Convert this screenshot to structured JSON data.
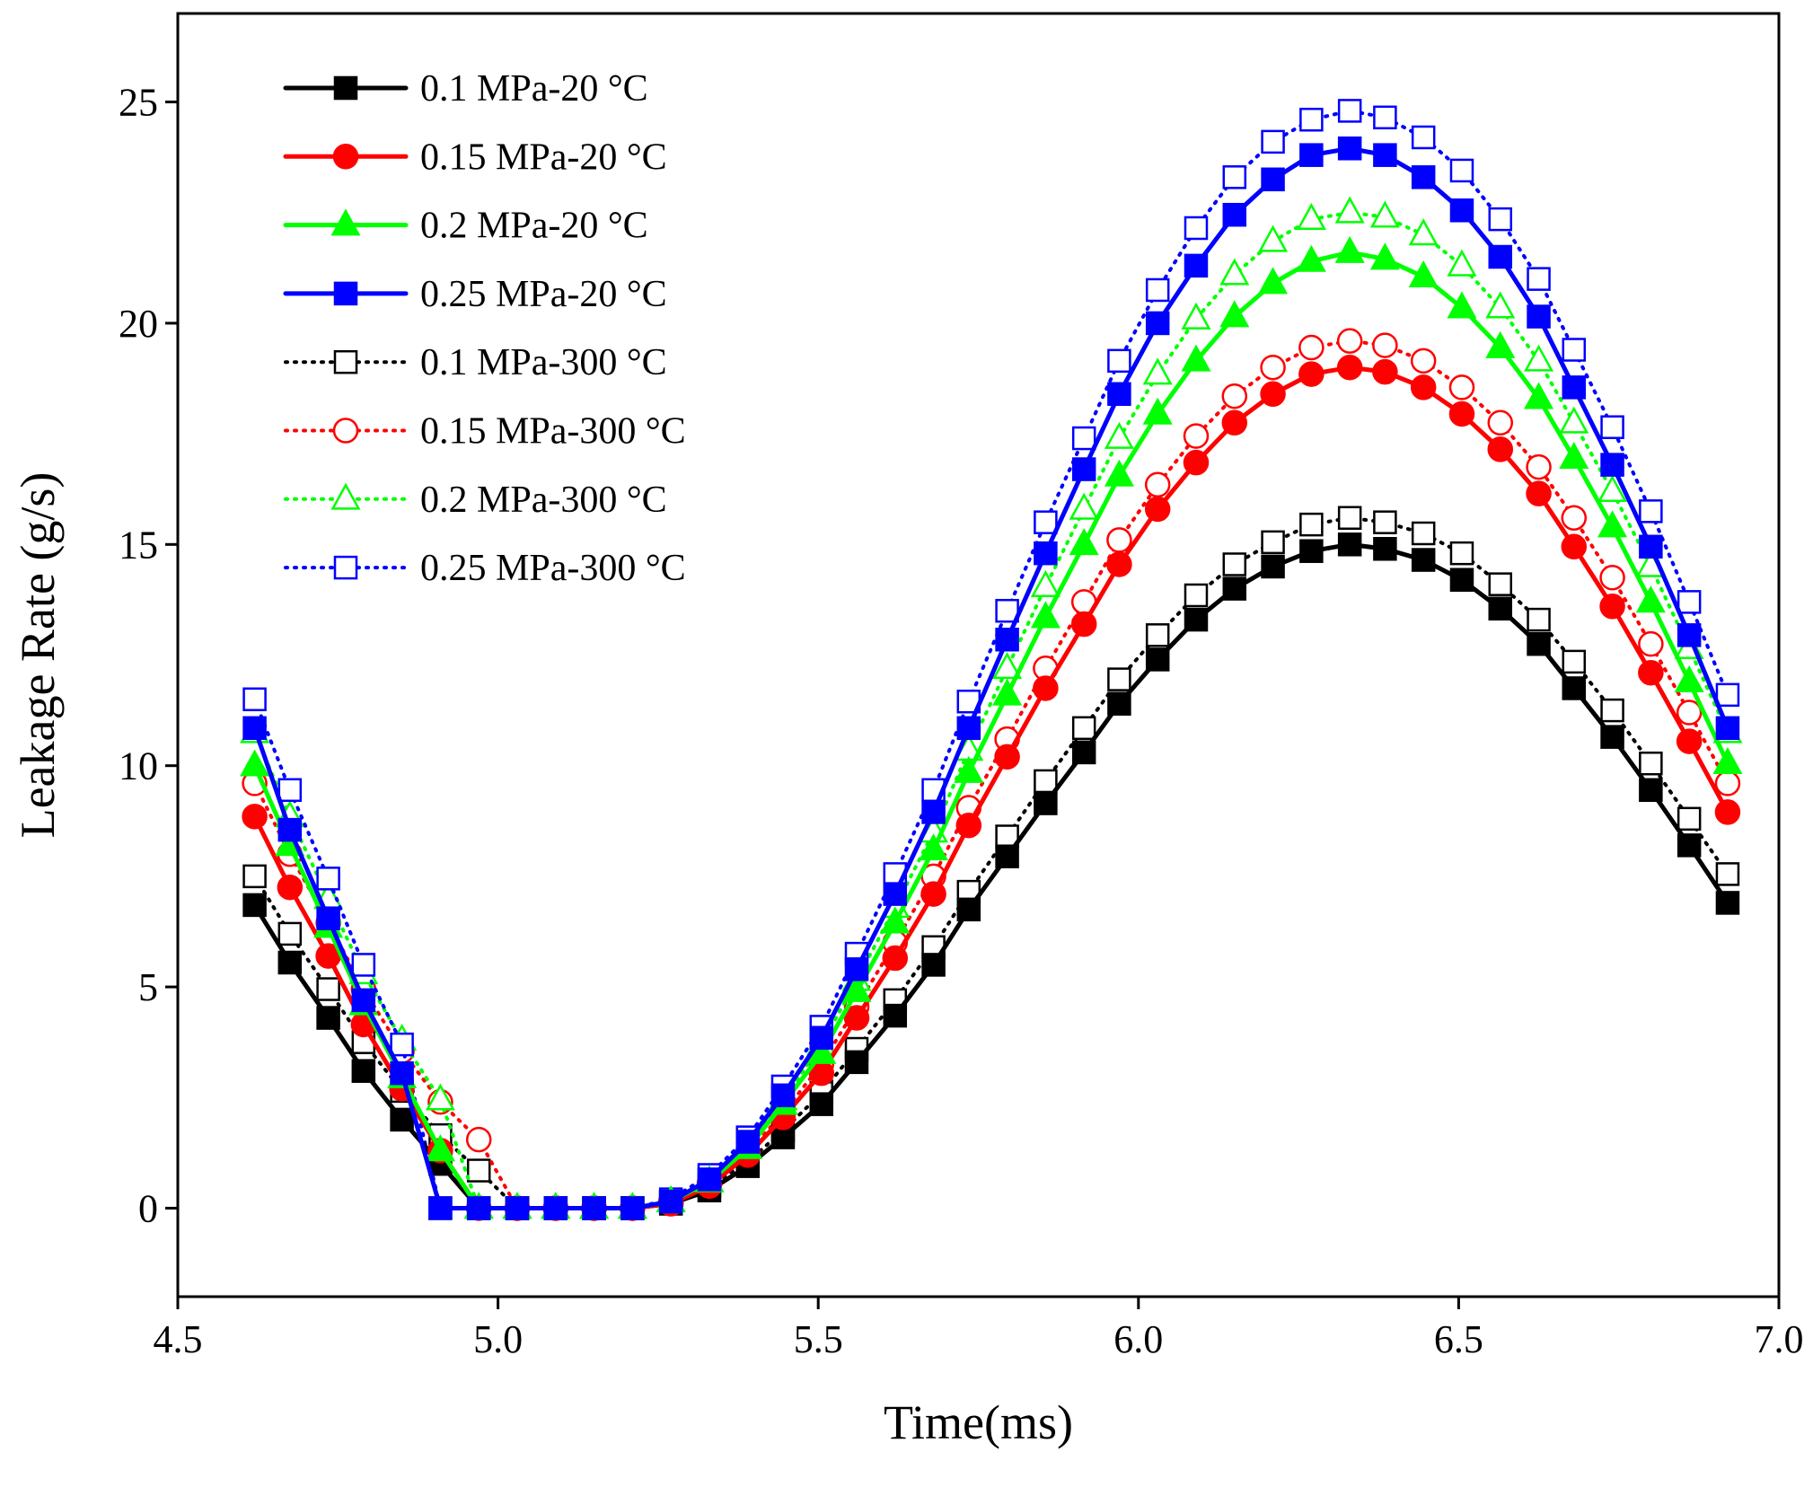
{
  "chart_data": {
    "type": "line",
    "title": "",
    "xlabel": "Time(ms)",
    "ylabel": "Leakage Rate (g/s)",
    "xlim": [
      4.5,
      7.0
    ],
    "ylim": [
      -2,
      27
    ],
    "xticks": [
      4.5,
      5.0,
      5.5,
      6.0,
      6.5,
      7.0
    ],
    "xtick_labels": [
      "4.5",
      "5.0",
      "5.5",
      "6.0",
      "6.5",
      "7.0"
    ],
    "yticks": [
      0,
      5,
      10,
      15,
      20,
      25
    ],
    "ytick_labels": [
      "0",
      "5",
      "10",
      "15",
      "20",
      "25"
    ],
    "grid": false,
    "legend_position": "top-left",
    "x": [
      4.62,
      4.675,
      4.735,
      4.79,
      4.85,
      4.91,
      4.97,
      5.03,
      5.09,
      5.15,
      5.21,
      5.27,
      5.33,
      5.39,
      5.445,
      5.505,
      5.56,
      5.62,
      5.68,
      5.735,
      5.795,
      5.855,
      5.915,
      5.97,
      6.03,
      6.09,
      6.15,
      6.21,
      6.27,
      6.33,
      6.385,
      6.445,
      6.505,
      6.565,
      6.625,
      6.68,
      6.74,
      6.8,
      6.86,
      6.92
    ],
    "series": [
      {
        "name": "0.1 MPa-20 °C",
        "color": "#000000",
        "marker": "square",
        "filled": true,
        "line": "solid",
        "values": [
          6.85,
          5.55,
          4.3,
          3.1,
          2.0,
          1.0,
          0.0,
          0.0,
          0.0,
          0.0,
          0.0,
          0.1,
          0.4,
          0.95,
          1.6,
          2.35,
          3.3,
          4.35,
          5.5,
          6.75,
          7.95,
          9.15,
          10.3,
          11.4,
          12.4,
          13.3,
          14.0,
          14.5,
          14.85,
          15.0,
          14.9,
          14.65,
          14.2,
          13.55,
          12.75,
          11.75,
          10.65,
          9.45,
          8.2,
          6.9
        ]
      },
      {
        "name": "0.15 MPa-20 °C",
        "color": "#ff0000",
        "marker": "circle",
        "filled": true,
        "line": "solid",
        "values": [
          8.85,
          7.25,
          5.7,
          4.15,
          2.7,
          1.3,
          0.0,
          0.0,
          0.0,
          0.0,
          0.0,
          0.1,
          0.5,
          1.2,
          2.05,
          3.05,
          4.3,
          5.65,
          7.1,
          8.65,
          10.2,
          11.75,
          13.2,
          14.55,
          15.8,
          16.85,
          17.75,
          18.4,
          18.85,
          19.0,
          18.9,
          18.55,
          17.95,
          17.15,
          16.15,
          14.95,
          13.6,
          12.1,
          10.55,
          8.95
        ]
      },
      {
        "name": "0.2 MPa-20 °C",
        "color": "#00ff00",
        "marker": "triangle",
        "filled": true,
        "line": "solid",
        "values": [
          10.0,
          8.2,
          6.35,
          4.6,
          2.95,
          1.3,
          0.0,
          0.0,
          0.0,
          0.0,
          0.0,
          0.15,
          0.6,
          1.35,
          2.35,
          3.5,
          4.9,
          6.45,
          8.1,
          9.85,
          11.6,
          13.35,
          15.0,
          16.55,
          17.95,
          19.15,
          20.15,
          20.9,
          21.4,
          21.6,
          21.45,
          21.05,
          20.35,
          19.45,
          18.3,
          16.95,
          15.4,
          13.7,
          11.9,
          10.05
        ]
      },
      {
        "name": "0.25 MPa-20 °C",
        "color": "#0000ff",
        "marker": "square",
        "filled": true,
        "line": "solid",
        "values": [
          10.85,
          8.55,
          6.55,
          4.7,
          3.05,
          0.0,
          0.0,
          0.0,
          0.0,
          0.0,
          0.0,
          0.15,
          0.65,
          1.5,
          2.55,
          3.85,
          5.4,
          7.1,
          8.95,
          10.85,
          12.85,
          14.8,
          16.7,
          18.4,
          20.0,
          21.3,
          22.45,
          23.25,
          23.8,
          23.95,
          23.8,
          23.3,
          22.55,
          21.5,
          20.15,
          18.55,
          16.8,
          14.95,
          12.95,
          10.85
        ]
      },
      {
        "name": "0.1 MPa-300 °C",
        "color": "#000000",
        "marker": "square",
        "filled": false,
        "line": "dotted",
        "values": [
          7.5,
          6.2,
          4.95,
          3.75,
          2.65,
          1.65,
          0.85,
          0.0,
          0.0,
          0.0,
          0.0,
          0.15,
          0.5,
          1.05,
          1.75,
          2.6,
          3.6,
          4.7,
          5.9,
          7.15,
          8.4,
          9.65,
          10.85,
          11.95,
          12.95,
          13.85,
          14.55,
          15.05,
          15.45,
          15.6,
          15.5,
          15.25,
          14.8,
          14.1,
          13.3,
          12.35,
          11.25,
          10.05,
          8.8,
          7.55
        ]
      },
      {
        "name": "0.15 MPa-300 °C",
        "color": "#ff0000",
        "marker": "circle",
        "filled": false,
        "line": "dotted",
        "values": [
          9.6,
          8.0,
          6.45,
          4.95,
          3.55,
          2.4,
          1.55,
          0.0,
          0.0,
          0.0,
          0.0,
          0.15,
          0.55,
          1.25,
          2.15,
          3.25,
          4.55,
          6.0,
          7.5,
          9.05,
          10.6,
          12.2,
          13.7,
          15.1,
          16.35,
          17.45,
          18.35,
          19.0,
          19.45,
          19.6,
          19.5,
          19.15,
          18.55,
          17.75,
          16.75,
          15.6,
          14.25,
          12.75,
          11.2,
          9.6
        ]
      },
      {
        "name": "0.2 MPa-300 °C",
        "color": "#00ff00",
        "marker": "triangle",
        "filled": false,
        "line": "dotted",
        "values": [
          10.75,
          8.85,
          7.0,
          5.3,
          3.8,
          2.45,
          0.0,
          0.0,
          0.0,
          0.0,
          0.0,
          0.15,
          0.6,
          1.4,
          2.45,
          3.7,
          5.15,
          6.8,
          8.5,
          10.35,
          12.2,
          14.05,
          15.8,
          17.4,
          18.85,
          20.1,
          21.1,
          21.85,
          22.35,
          22.5,
          22.4,
          22.0,
          21.3,
          20.35,
          19.15,
          17.75,
          16.2,
          14.5,
          12.65,
          10.75
        ]
      },
      {
        "name": "0.25 MPa-300 °C",
        "color": "#0000ff",
        "marker": "square",
        "filled": false,
        "line": "dotted",
        "values": [
          11.5,
          9.45,
          7.45,
          5.5,
          3.7,
          0.0,
          0.0,
          0.0,
          0.0,
          0.0,
          0.0,
          0.2,
          0.75,
          1.6,
          2.75,
          4.1,
          5.75,
          7.55,
          9.45,
          11.45,
          13.5,
          15.5,
          17.4,
          19.15,
          20.75,
          22.15,
          23.3,
          24.1,
          24.6,
          24.8,
          24.65,
          24.2,
          23.45,
          22.35,
          21.0,
          19.4,
          17.65,
          15.75,
          13.7,
          11.6
        ]
      }
    ]
  }
}
